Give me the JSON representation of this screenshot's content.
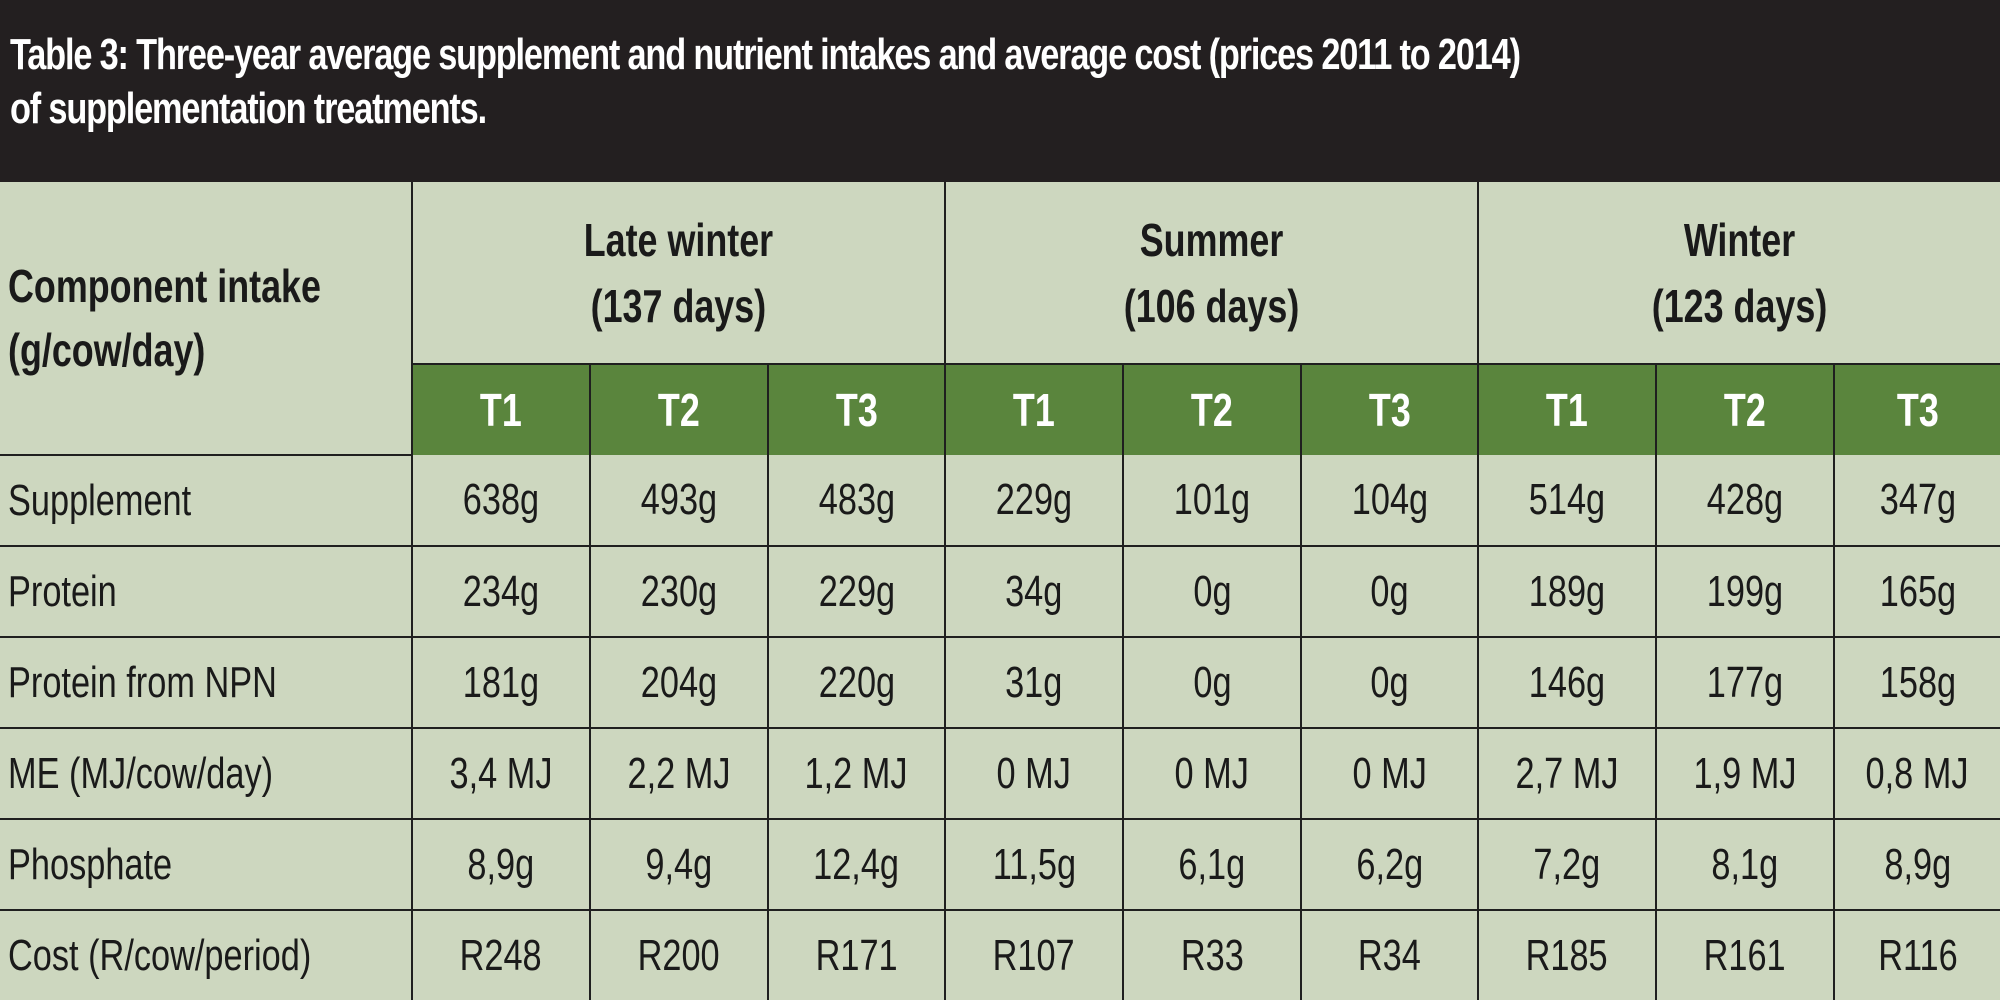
{
  "title": {
    "line1": "Table 3: Three-year average supplement and nutrient intakes and average cost (prices 2011 to 2014)",
    "line2": "of supplementation treatments."
  },
  "header": {
    "component_line1": "Component intake",
    "component_line2": "(g/cow/day)",
    "periods": [
      {
        "name": "Late winter",
        "days": "(137 days)"
      },
      {
        "name": "Summer",
        "days": "(106 days)"
      },
      {
        "name": "Winter",
        "days": "(123 days)"
      }
    ],
    "treatments": [
      "T1",
      "T2",
      "T3",
      "T1",
      "T2",
      "T3",
      "T1",
      "T2",
      "T3"
    ]
  },
  "rows": [
    {
      "label": "Supplement",
      "values": [
        "638g",
        "493g",
        "483g",
        "229g",
        "101g",
        "104g",
        "514g",
        "428g",
        "347g"
      ]
    },
    {
      "label": "Protein",
      "values": [
        "234g",
        "230g",
        "229g",
        "34g",
        "0g",
        "0g",
        "189g",
        "199g",
        "165g"
      ]
    },
    {
      "label": "Protein from NPN",
      "values": [
        "181g",
        "204g",
        "220g",
        "31g",
        "0g",
        "0g",
        "146g",
        "177g",
        "158g"
      ]
    },
    {
      "label": "ME (MJ/cow/day)",
      "values": [
        "3,4 MJ",
        "2,2 MJ",
        "1,2 MJ",
        "0 MJ",
        "0 MJ",
        "0 MJ",
        "2,7 MJ",
        "1,9 MJ",
        "0,8 MJ"
      ]
    },
    {
      "label": "Phosphate",
      "values": [
        "8,9g",
        "9,4g",
        "12,4g",
        "11,5g",
        "6,1g",
        "6,2g",
        "7,2g",
        "8,1g",
        "8,9g"
      ]
    },
    {
      "label": "Cost (R/cow/period)",
      "values": [
        "R248",
        "R200",
        "R171",
        "R107",
        "R33",
        "R34",
        "R185",
        "R161",
        "R116"
      ]
    }
  ],
  "colors": {
    "title_bg": "#231f20",
    "table_bg": "#cdd7bf",
    "treatment_header_bg": "#5a853d"
  }
}
